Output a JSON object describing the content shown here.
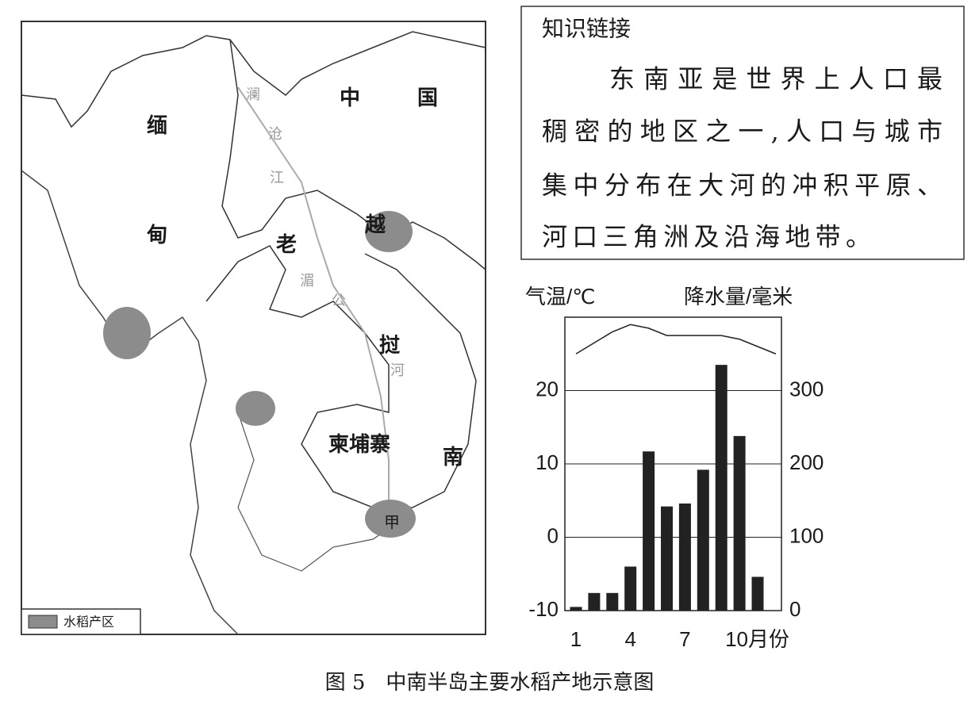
{
  "map": {
    "labels": {
      "myanmar_1": "缅",
      "myanmar_2": "甸",
      "china_1": "中",
      "china_2": "国",
      "laos_1": "老",
      "laos_2": "挝",
      "vietnam_1": "越",
      "vietnam_2": "南",
      "cambodia": "柬埔寨",
      "jia": "甲",
      "lancang_1": "澜",
      "lancang_2": "沧",
      "lancang_3": "江",
      "mekong_1": "湄",
      "mekong_2": "公",
      "mekong_3": "河"
    },
    "legend": "水稻产区"
  },
  "text_box": {
    "title": "知识链接",
    "lines": [
      "东南亚是世界上人口最",
      "稠密的地区之一,人口与城市",
      "集中分布在大河的冲积平原、",
      "河口三角洲及沿海地带。"
    ]
  },
  "chart_data": {
    "type": "bar_line",
    "y_label": "气温/℃",
    "y2_label": "降水量/毫米",
    "categories": [
      "1",
      null,
      null,
      "4",
      null,
      null,
      "7",
      null,
      null,
      "10月份",
      null,
      null
    ],
    "series": [
      {
        "name": "降水量",
        "type": "bar",
        "axis": "y2",
        "color": "#222222",
        "values": [
          5,
          24,
          24,
          60,
          217,
          142,
          146,
          192,
          335,
          238,
          46,
          0
        ]
      },
      {
        "name": "气温",
        "type": "line",
        "axis": "y",
        "color": "#222222",
        "values": [
          25,
          26.5,
          28,
          29,
          28.5,
          27.5,
          27.5,
          27.5,
          27.5,
          27,
          26,
          25
        ]
      }
    ],
    "ylim": [
      -10,
      30
    ],
    "yticks": [
      -10,
      0,
      10,
      20
    ],
    "y2lim": [
      0,
      400
    ],
    "y2ticks": [
      0,
      100,
      200,
      300
    ],
    "grid": true
  },
  "caption": "图 5　中南半岛主要水稻产地示意图"
}
